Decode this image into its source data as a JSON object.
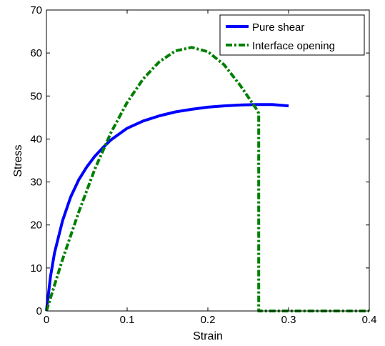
{
  "chart_data": {
    "type": "line",
    "xlabel": "Strain",
    "ylabel": "Stress",
    "xlim": [
      0,
      0.4
    ],
    "ylim": [
      0,
      70
    ],
    "xticks": [
      0,
      0.1,
      0.2,
      0.3,
      0.4
    ],
    "xtick_labels": [
      "0",
      "0.1",
      "0.2",
      "0.3",
      "0.4"
    ],
    "yticks": [
      0,
      10,
      20,
      30,
      40,
      50,
      60,
      70
    ],
    "ytick_labels": [
      "0",
      "10",
      "20",
      "30",
      "40",
      "50",
      "60",
      "70"
    ],
    "grid": false,
    "legend": "top-right",
    "series": [
      {
        "name": "Pure shear",
        "color": "#0000ff",
        "style": "solid",
        "x": [
          0,
          0.005,
          0.01,
          0.02,
          0.03,
          0.04,
          0.05,
          0.06,
          0.07,
          0.08,
          0.1,
          0.12,
          0.14,
          0.16,
          0.18,
          0.2,
          0.22,
          0.24,
          0.26,
          0.28,
          0.3
        ],
        "y": [
          0,
          8,
          13.5,
          21,
          26.5,
          30.5,
          33.5,
          36,
          38,
          39.8,
          42.5,
          44.2,
          45.4,
          46.3,
          46.9,
          47.4,
          47.7,
          47.9,
          48,
          48,
          47.7
        ]
      },
      {
        "name": "Interface opening",
        "color": "#008000",
        "style": "dash-dot",
        "x": [
          0,
          0.02,
          0.04,
          0.06,
          0.08,
          0.1,
          0.12,
          0.14,
          0.16,
          0.18,
          0.2,
          0.22,
          0.24,
          0.26,
          0.263,
          0.263,
          0.3,
          0.35,
          0.4
        ],
        "y": [
          0,
          12,
          23,
          33,
          41.5,
          48.5,
          54,
          58,
          60.5,
          61.3,
          60.3,
          57.3,
          52.5,
          47,
          46,
          0,
          0,
          0,
          0
        ]
      }
    ]
  }
}
